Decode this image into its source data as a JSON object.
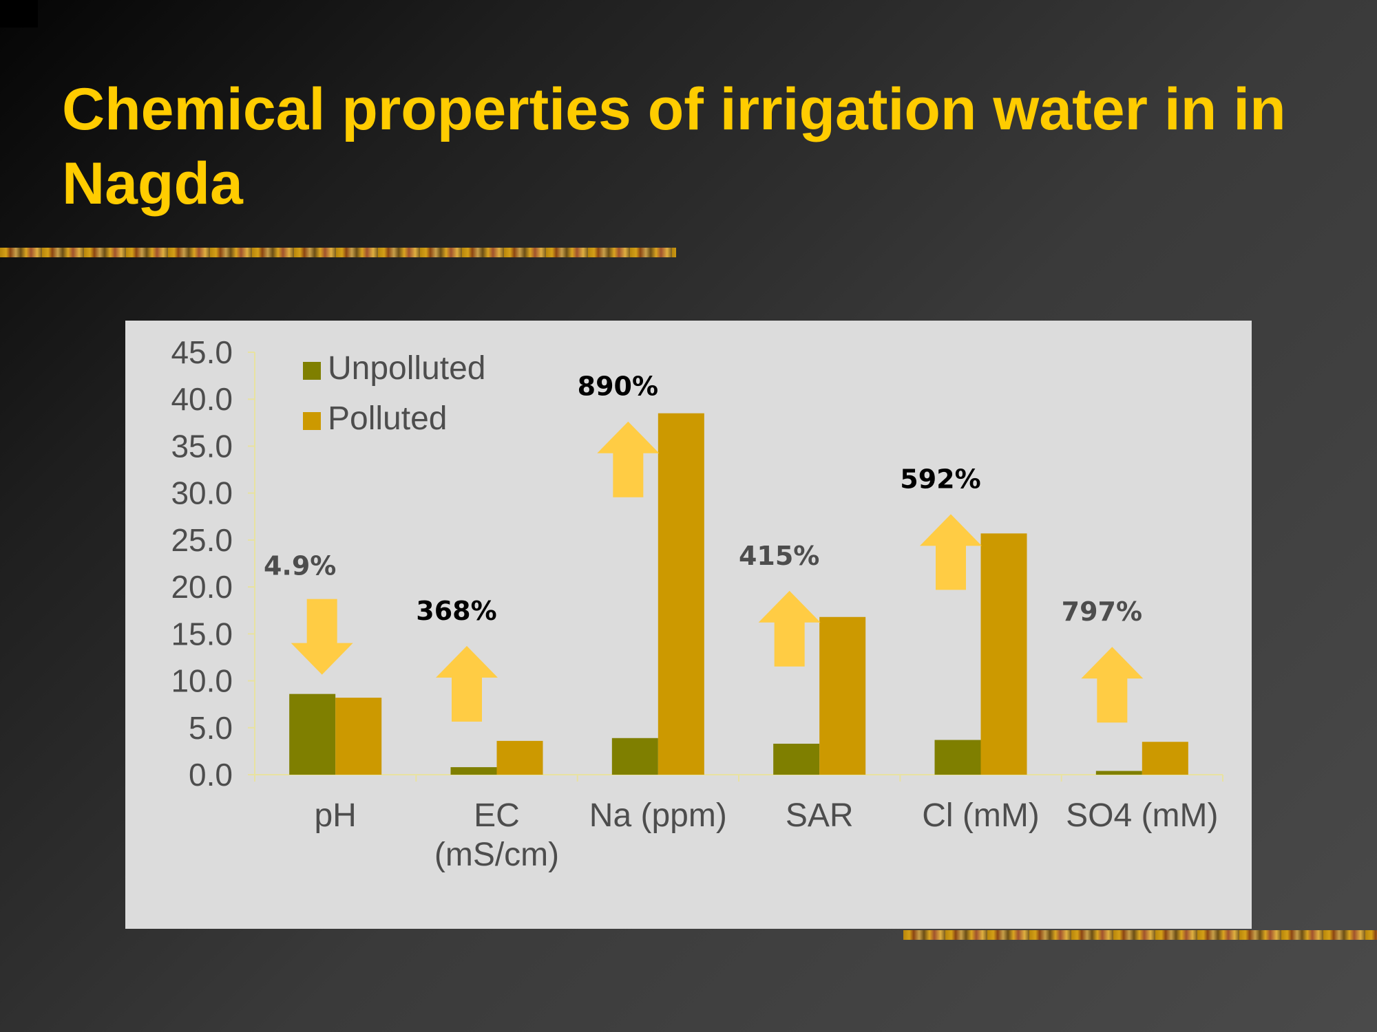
{
  "slide": {
    "title": "Chemical properties of irrigation water in in Nagda"
  },
  "colors": {
    "title": "#ffcc00",
    "unpolluted": "#7f7f00",
    "polluted": "#cc9900",
    "arrow": "#ffcc44",
    "panel": "#dcdcdc",
    "axis": "#e8e2a0"
  },
  "chart_data": {
    "type": "bar",
    "categories": [
      "pH",
      "EC\n(mS/cm)",
      "Na (ppm)",
      "SAR",
      "Cl (mM)",
      "SO4 (mM)"
    ],
    "series": [
      {
        "name": "Unpolluted",
        "values": [
          8.6,
          0.8,
          3.9,
          3.3,
          3.7,
          0.4
        ]
      },
      {
        "name": "Polluted",
        "values": [
          8.2,
          3.6,
          38.5,
          16.8,
          25.7,
          3.5
        ]
      }
    ],
    "ylim": [
      0,
      45
    ],
    "yticks": [
      "0.0",
      "5.0",
      "10.0",
      "15.0",
      "20.0",
      "25.0",
      "30.0",
      "35.0",
      "40.0",
      "45.0"
    ],
    "legend_position": "top-left",
    "grid": false,
    "annotations": [
      {
        "category": "pH",
        "text": "4.9%",
        "direction": "down",
        "color": "#4d4d4d"
      },
      {
        "category": "EC\n(mS/cm)",
        "text": "368%",
        "direction": "up",
        "color": "#000000"
      },
      {
        "category": "Na (ppm)",
        "text": "890%",
        "direction": "up",
        "color": "#000000"
      },
      {
        "category": "SAR",
        "text": "415%",
        "direction": "up",
        "color": "#4d4d4d"
      },
      {
        "category": "Cl (mM)",
        "text": "592%",
        "direction": "up",
        "color": "#000000"
      },
      {
        "category": "SO4 (mM)",
        "text": "797%",
        "direction": "up",
        "color": "#4d4d4d"
      }
    ]
  }
}
